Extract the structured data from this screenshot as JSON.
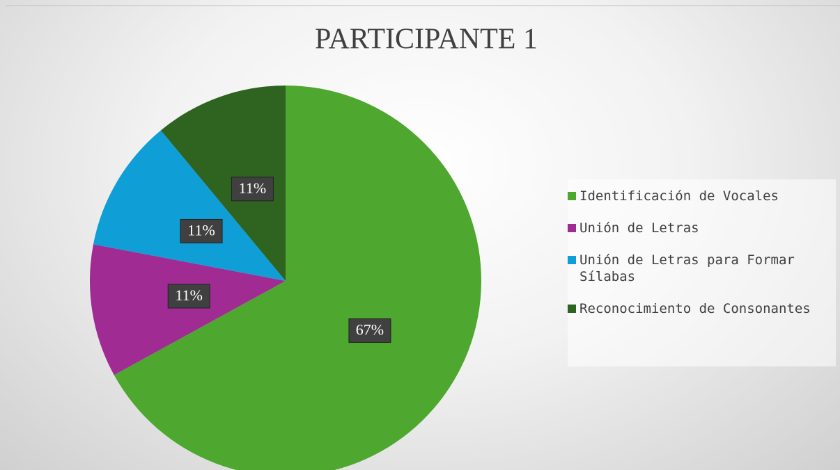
{
  "chart_data": {
    "type": "pie",
    "title": "PARTICIPANTE 1",
    "categories": [
      "Identificación de Vocales",
      "Unión de Letras",
      "Unión de Letras para Formar Sílabas",
      "Reconocimiento de Consonantes"
    ],
    "values": [
      67,
      11,
      11,
      11
    ],
    "value_labels": [
      "67%",
      "11%",
      "11%",
      "11%"
    ],
    "colors": [
      "#4ea72e",
      "#a02b93",
      "#0f9ed5",
      "#2e6320"
    ],
    "legend": "right"
  }
}
